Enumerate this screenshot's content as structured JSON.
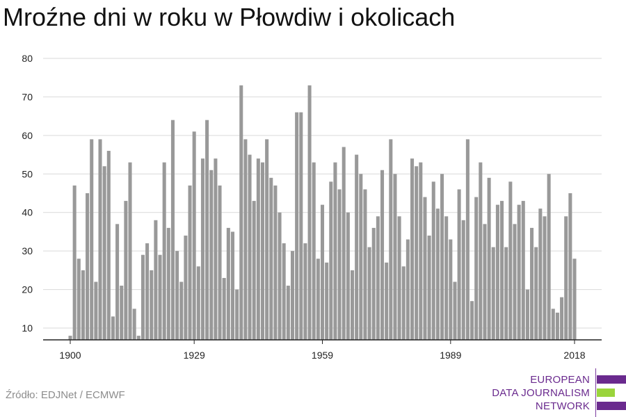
{
  "chart_data": {
    "type": "bar",
    "title": "Mroźne dni w roku w Płowdiw i okolicach",
    "x_start": 1900,
    "x_end": 2018,
    "x_ticks": [
      1900,
      1929,
      1959,
      1989,
      2018
    ],
    "y_ticks": [
      10,
      20,
      30,
      40,
      50,
      60,
      70,
      80
    ],
    "ylim": [
      7,
      80
    ],
    "grid": true,
    "bar_color": "#999999",
    "values": [
      8,
      47,
      28,
      25,
      45,
      59,
      22,
      59,
      52,
      56,
      13,
      37,
      21,
      43,
      53,
      15,
      8,
      29,
      32,
      25,
      38,
      29,
      53,
      36,
      64,
      30,
      22,
      34,
      47,
      61,
      26,
      54,
      64,
      51,
      54,
      47,
      23,
      36,
      35,
      20,
      73,
      59,
      55,
      43,
      54,
      53,
      59,
      49,
      47,
      40,
      32,
      21,
      30,
      66,
      66,
      32,
      73,
      53,
      28,
      42,
      27,
      48,
      53,
      46,
      57,
      40,
      25,
      55,
      50,
      46,
      31,
      36,
      39,
      51,
      27,
      59,
      50,
      39,
      26,
      33,
      54,
      52,
      53,
      44,
      34,
      48,
      41,
      50,
      39,
      33,
      22,
      46,
      38,
      59,
      17,
      44,
      53,
      37,
      49,
      31,
      42,
      43,
      31,
      48,
      37,
      42,
      43,
      20,
      36,
      31,
      41,
      39,
      50,
      15,
      14,
      18,
      39,
      45,
      28
    ]
  },
  "source": "Źródło: EDJNet / ECMWF",
  "logo": {
    "line1": "EUROPEAN",
    "line2": "DATA JOURNALISM",
    "line3": "NETWORK"
  }
}
